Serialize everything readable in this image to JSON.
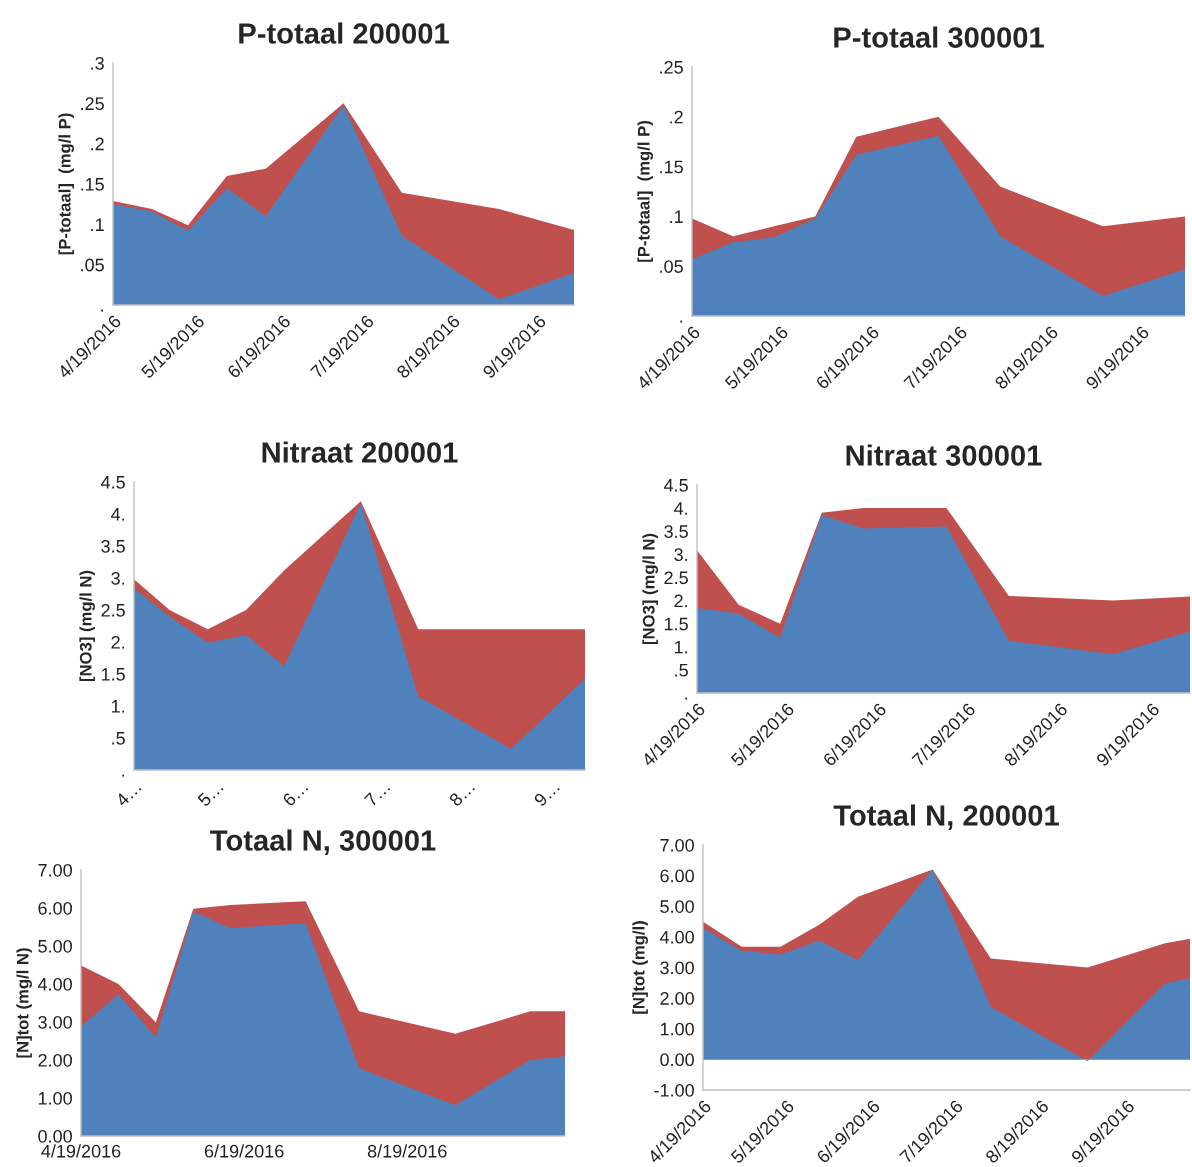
{
  "chart_data": [
    {
      "type": "area",
      "title": "P-totaal 200001",
      "ylabel": "[P-totaal]  (mg/l P)",
      "x": [
        "2016-04-19",
        "2016-05-03",
        "2016-05-16",
        "2016-05-30",
        "2016-06-13",
        "2016-07-11",
        "2016-08-01",
        "2016-09-05",
        "2016-10-02"
      ],
      "series": [
        {
          "color": "#c0504d",
          "values": [
            0.129,
            0.119,
            0.099,
            0.16,
            0.169,
            0.25,
            0.139,
            0.119,
            0.093
          ]
        },
        {
          "color": "#4f81bd",
          "values": [
            0.125,
            0.116,
            0.092,
            0.145,
            0.11,
            0.248,
            0.086,
            0.007,
            0.04
          ]
        }
      ],
      "xlim": [
        "2016-04-19",
        "2016-10-02"
      ],
      "xticks": [
        {
          "value": "2016-04-19",
          "label": "4/19/2016"
        },
        {
          "value": "2016-05-19",
          "label": "5/19/2016"
        },
        {
          "value": "2016-06-19",
          "label": "6/19/2016"
        },
        {
          "value": "2016-07-19",
          "label": "7/19/2016"
        },
        {
          "value": "2016-08-19",
          "label": "8/19/2016"
        },
        {
          "value": "2016-09-19",
          "label": "9/19/2016"
        }
      ],
      "ylim": [
        0,
        0.3
      ],
      "yticks": [
        {
          "value": 0,
          "label": "."
        },
        {
          "value": 0.05,
          "label": ".05"
        },
        {
          "value": 0.1,
          "label": ".1"
        },
        {
          "value": 0.15,
          "label": ".15"
        },
        {
          "value": 0.2,
          "label": ".2"
        },
        {
          "value": 0.25,
          "label": ".25"
        },
        {
          "value": 0.3,
          "label": ".3"
        }
      ],
      "grid": false,
      "legend": false
    },
    {
      "type": "area",
      "title": "P-totaal 300001",
      "ylabel": "[P-totaal]  (mg/l P)",
      "x": [
        "2016-04-19",
        "2016-05-03",
        "2016-05-17",
        "2016-05-31",
        "2016-06-14",
        "2016-07-12",
        "2016-08-02",
        "2016-09-06",
        "2016-10-04"
      ],
      "series": [
        {
          "color": "#c0504d",
          "values": [
            0.098,
            0.08,
            0.09,
            0.1,
            0.18,
            0.2,
            0.13,
            0.09,
            0.1
          ]
        },
        {
          "color": "#4f81bd",
          "values": [
            0.057,
            0.074,
            0.079,
            0.098,
            0.162,
            0.181,
            0.08,
            0.02,
            0.047
          ]
        }
      ],
      "xlim": [
        "2016-04-19",
        "2016-10-04"
      ],
      "xticks": [
        {
          "value": "2016-04-19",
          "label": "4/19/2016"
        },
        {
          "value": "2016-05-19",
          "label": "5/19/2016"
        },
        {
          "value": "2016-06-19",
          "label": "6/19/2016"
        },
        {
          "value": "2016-07-19",
          "label": "7/19/2016"
        },
        {
          "value": "2016-08-19",
          "label": "8/19/2016"
        },
        {
          "value": "2016-09-19",
          "label": "9/19/2016"
        }
      ],
      "ylim": [
        0,
        0.25
      ],
      "yticks": [
        {
          "value": 0,
          "label": "."
        },
        {
          "value": 0.05,
          "label": ".05"
        },
        {
          "value": 0.1,
          "label": ".1"
        },
        {
          "value": 0.15,
          "label": ".15"
        },
        {
          "value": 0.2,
          "label": ".2"
        },
        {
          "value": 0.25,
          "label": ".25"
        }
      ],
      "grid": false,
      "legend": false
    },
    {
      "type": "area",
      "title": "Nitraat 200001",
      "ylabel": "[NO3] (mg/l N)",
      "x": [
        "2016-04-19",
        "2016-05-02",
        "2016-05-16",
        "2016-05-30",
        "2016-06-13",
        "2016-07-11",
        "2016-08-01",
        "2016-09-04",
        "2016-10-01"
      ],
      "series": [
        {
          "color": "#c0504d",
          "values": [
            2.98,
            2.5,
            2.2,
            2.5,
            3.12,
            4.2,
            2.2,
            2.2,
            2.2
          ]
        },
        {
          "color": "#4f81bd",
          "values": [
            2.84,
            2.4,
            1.99,
            2.11,
            1.62,
            4.17,
            1.15,
            0.33,
            1.43
          ]
        }
      ],
      "xlim": [
        "2016-04-19",
        "2016-10-01"
      ],
      "xticks": [
        {
          "value": "2016-04-19",
          "label": "4…"
        },
        {
          "value": "2016-05-19",
          "label": "5…"
        },
        {
          "value": "2016-06-19",
          "label": "6…"
        },
        {
          "value": "2016-07-19",
          "label": "7…"
        },
        {
          "value": "2016-08-19",
          "label": "8…"
        },
        {
          "value": "2016-09-19",
          "label": "9…"
        }
      ],
      "ylim": [
        0,
        4.5
      ],
      "yticks": [
        {
          "value": 0,
          "label": "."
        },
        {
          "value": 0.5,
          "label": ".5"
        },
        {
          "value": 1,
          "label": "1."
        },
        {
          "value": 1.5,
          "label": "1.5"
        },
        {
          "value": 2,
          "label": "2."
        },
        {
          "value": 2.5,
          "label": "2.5"
        },
        {
          "value": 3,
          "label": "3."
        },
        {
          "value": 3.5,
          "label": "3.5"
        },
        {
          "value": 4,
          "label": "4."
        },
        {
          "value": 4.5,
          "label": "4.5"
        }
      ],
      "grid": false,
      "legend": false
    },
    {
      "type": "area",
      "title": "Nitraat 300001",
      "ylabel": "[NO3] (mg/l N)",
      "x": [
        "2016-04-19",
        "2016-05-03",
        "2016-05-17",
        "2016-05-31",
        "2016-06-14",
        "2016-07-12",
        "2016-08-02",
        "2016-09-06",
        "2016-10-02"
      ],
      "series": [
        {
          "color": "#c0504d",
          "values": [
            3.09,
            1.91,
            1.5,
            3.9,
            4.0,
            4.0,
            2.1,
            2.0,
            2.09
          ]
        },
        {
          "color": "#4f81bd",
          "values": [
            1.84,
            1.72,
            1.19,
            3.85,
            3.56,
            3.6,
            1.13,
            0.84,
            1.33
          ]
        }
      ],
      "xlim": [
        "2016-04-19",
        "2016-10-02"
      ],
      "xticks": [
        {
          "value": "2016-04-19",
          "label": "4/19/2016"
        },
        {
          "value": "2016-05-19",
          "label": "5/19/2016"
        },
        {
          "value": "2016-06-19",
          "label": "6/19/2016"
        },
        {
          "value": "2016-07-19",
          "label": "7/19/2016"
        },
        {
          "value": "2016-08-19",
          "label": "8/19/2016"
        },
        {
          "value": "2016-09-19",
          "label": "9/19/2016"
        }
      ],
      "ylim": [
        0,
        4.5
      ],
      "yticks": [
        {
          "value": 0,
          "label": "."
        },
        {
          "value": 0.5,
          "label": ".5"
        },
        {
          "value": 1,
          "label": "1."
        },
        {
          "value": 1.5,
          "label": "1.5"
        },
        {
          "value": 2,
          "label": "2."
        },
        {
          "value": 2.5,
          "label": "2.5"
        },
        {
          "value": 3,
          "label": "3."
        },
        {
          "value": 3.5,
          "label": "3.5"
        },
        {
          "value": 4,
          "label": "4."
        },
        {
          "value": 4.5,
          "label": "4.5"
        }
      ],
      "grid": false,
      "legend": false
    },
    {
      "type": "area",
      "title": "Totaal N, 300001",
      "ylabel": "[N]tot (mg/l N)",
      "x": [
        "2016-04-19",
        "2016-05-03",
        "2016-05-17",
        "2016-05-31",
        "2016-06-14",
        "2016-07-12",
        "2016-08-01",
        "2016-09-06",
        "2016-10-04",
        "2016-10-17"
      ],
      "series": [
        {
          "color": "#c0504d",
          "values": [
            4.49,
            4.0,
            2.99,
            5.98,
            6.08,
            6.18,
            3.28,
            2.69,
            3.28,
            3.28
          ]
        },
        {
          "color": "#4f81bd",
          "values": [
            2.88,
            3.73,
            2.59,
            5.9,
            5.47,
            5.6,
            1.78,
            0.81,
            2.0,
            2.1
          ]
        }
      ],
      "xlim": [
        "2016-04-19",
        "2016-10-17"
      ],
      "xticks": [
        {
          "value": "2016-04-19",
          "label": "4/19/2016"
        },
        {
          "value": "2016-06-19",
          "label": "6/19/2016"
        },
        {
          "value": "2016-08-19",
          "label": "8/19/2016"
        }
      ],
      "ylim": [
        0,
        7
      ],
      "yticks": [
        {
          "value": 0,
          "label": "0.00"
        },
        {
          "value": 1,
          "label": "1.00"
        },
        {
          "value": 2,
          "label": "2.00"
        },
        {
          "value": 3,
          "label": "3.00"
        },
        {
          "value": 4,
          "label": "4.00"
        },
        {
          "value": 5,
          "label": "5.00"
        },
        {
          "value": 6,
          "label": "6.00"
        },
        {
          "value": 7,
          "label": "7.00"
        }
      ],
      "grid": false,
      "legend": false
    },
    {
      "type": "area",
      "title": "Totaal N, 200001",
      "ylabel": "[N]tot (mg/l)",
      "x": [
        "2016-04-19",
        "2016-05-03",
        "2016-05-17",
        "2016-05-31",
        "2016-06-14",
        "2016-07-11",
        "2016-08-01",
        "2016-09-05",
        "2016-10-03",
        "2016-10-12"
      ],
      "series": [
        {
          "color": "#c0504d",
          "values": [
            4.49,
            3.68,
            3.68,
            4.4,
            5.31,
            6.2,
            3.29,
            3.0,
            3.79,
            3.94
          ]
        },
        {
          "color": "#4f81bd",
          "values": [
            4.29,
            3.55,
            3.42,
            3.88,
            3.24,
            6.2,
            1.71,
            -0.06,
            2.48,
            2.66
          ]
        }
      ],
      "xlim": [
        "2016-04-19",
        "2016-10-12"
      ],
      "xticks": [
        {
          "value": "2016-04-19",
          "label": "4/19/2016"
        },
        {
          "value": "2016-05-19",
          "label": "5/19/2016"
        },
        {
          "value": "2016-06-19",
          "label": "6/19/2016"
        },
        {
          "value": "2016-07-19",
          "label": "7/19/2016"
        },
        {
          "value": "2016-08-19",
          "label": "8/19/2016"
        },
        {
          "value": "2016-09-19",
          "label": "9/19/2016"
        }
      ],
      "ylim": [
        -1,
        7
      ],
      "yticks": [
        {
          "value": -1,
          "label": "-1.00"
        },
        {
          "value": 0,
          "label": "0.00"
        },
        {
          "value": 1,
          "label": "1.00"
        },
        {
          "value": 2,
          "label": "2.00"
        },
        {
          "value": 3,
          "label": "3.00"
        },
        {
          "value": 4,
          "label": "4.00"
        },
        {
          "value": 5,
          "label": "5.00"
        },
        {
          "value": 6,
          "label": "6.00"
        },
        {
          "value": 7,
          "label": "7.00"
        }
      ],
      "grid": false,
      "legend": false
    }
  ]
}
